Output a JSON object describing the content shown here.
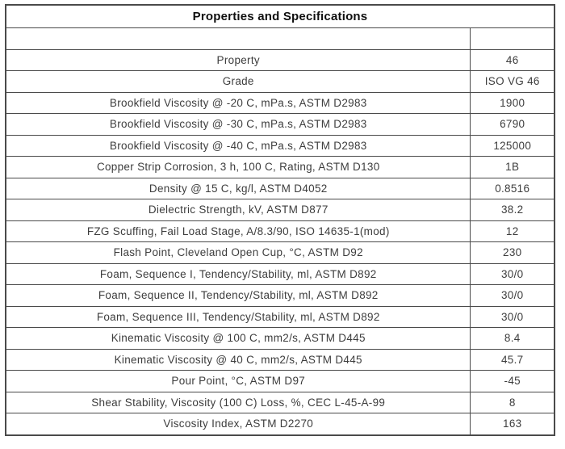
{
  "title": "Properties and Specifications",
  "table": {
    "rows": [
      {
        "property": "",
        "value": ""
      },
      {
        "property": "Property",
        "value": "46"
      },
      {
        "property": "Grade",
        "value": "ISO VG 46"
      },
      {
        "property": "Brookfield Viscosity @ -20 C, mPa.s, ASTM D2983",
        "value": "1900"
      },
      {
        "property": "Brookfield Viscosity @ -30 C, mPa.s, ASTM D2983",
        "value": "6790"
      },
      {
        "property": "Brookfield Viscosity @ -40 C, mPa.s, ASTM D2983",
        "value": "125000"
      },
      {
        "property": "Copper Strip Corrosion, 3 h, 100 C, Rating, ASTM D130",
        "value": "1B"
      },
      {
        "property": "Density @ 15 C, kg/l, ASTM D4052",
        "value": "0.8516"
      },
      {
        "property": "Dielectric Strength, kV, ASTM D877",
        "value": "38.2"
      },
      {
        "property": "FZG Scuffing, Fail Load Stage, A/8.3/90, ISO 14635-1(mod)",
        "value": "12"
      },
      {
        "property": "Flash Point, Cleveland Open Cup, °C, ASTM D92",
        "value": "230"
      },
      {
        "property": "Foam, Sequence I, Tendency/Stability, ml, ASTM D892",
        "value": "30/0"
      },
      {
        "property": "Foam, Sequence II, Tendency/Stability, ml, ASTM D892",
        "value": "30/0"
      },
      {
        "property": "Foam, Sequence III, Tendency/Stability, ml, ASTM D892",
        "value": "30/0"
      },
      {
        "property": "Kinematic Viscosity @ 100 C, mm2/s, ASTM D445",
        "value": "8.4"
      },
      {
        "property": "Kinematic Viscosity @ 40 C, mm2/s, ASTM D445",
        "value": "45.7"
      },
      {
        "property": "Pour Point, °C, ASTM D97",
        "value": "-45"
      },
      {
        "property": "Shear Stability, Viscosity (100 C) Loss, %, CEC L-45-A-99",
        "value": "8"
      },
      {
        "property": "Viscosity Index, ASTM D2270",
        "value": "163"
      }
    ]
  },
  "colors": {
    "border": "#4a4a4a",
    "text": "#3d3d3d",
    "title_text": "#0f0f0f",
    "background": "#ffffff"
  }
}
